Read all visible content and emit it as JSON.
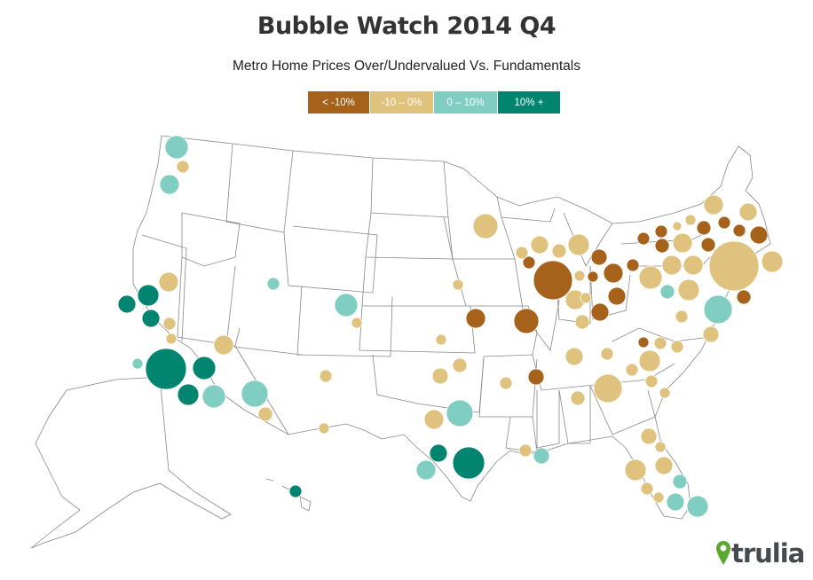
{
  "title": "Bubble Watch 2014 Q4",
  "subtitle": "Metro Home Prices Over/Undervalued Vs. Fundamentals",
  "legend": [
    {
      "label": "< -10%",
      "color": "#a6611a"
    },
    {
      "label": "-10 – 0%",
      "color": "#dfc27d"
    },
    {
      "label": "0 – 10%",
      "color": "#80cdc1"
    },
    {
      "label": "10% +",
      "color": "#018571"
    }
  ],
  "logo": {
    "text": "trulia",
    "color": "#5aa830"
  },
  "bubble_categories": [
    "lt_minus10",
    "minus10_0",
    "0_10",
    "10_plus"
  ]
}
